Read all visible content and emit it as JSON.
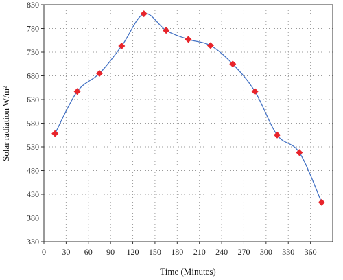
{
  "chart_data": {
    "type": "line",
    "xlabel": "Time (Minutes)",
    "ylabel": "Solar radiation W/m²",
    "xlim": [
      0,
      390
    ],
    "ylim": [
      330,
      830
    ],
    "x_ticks": [
      0,
      30,
      60,
      90,
      120,
      150,
      180,
      210,
      240,
      270,
      300,
      330,
      360
    ],
    "y_ticks": [
      330,
      380,
      430,
      480,
      530,
      580,
      630,
      680,
      730,
      780,
      830
    ],
    "grid": true,
    "series": [
      {
        "x": [
          15,
          45,
          75,
          105,
          135,
          165,
          195,
          225,
          255,
          285,
          315,
          345,
          375
        ],
        "values": [
          558,
          647,
          685,
          743,
          811,
          776,
          757,
          744,
          705,
          647,
          555,
          518,
          413
        ],
        "line_color": "#4472c4",
        "marker": "diamond",
        "marker_color": "#e8242b"
      }
    ]
  }
}
